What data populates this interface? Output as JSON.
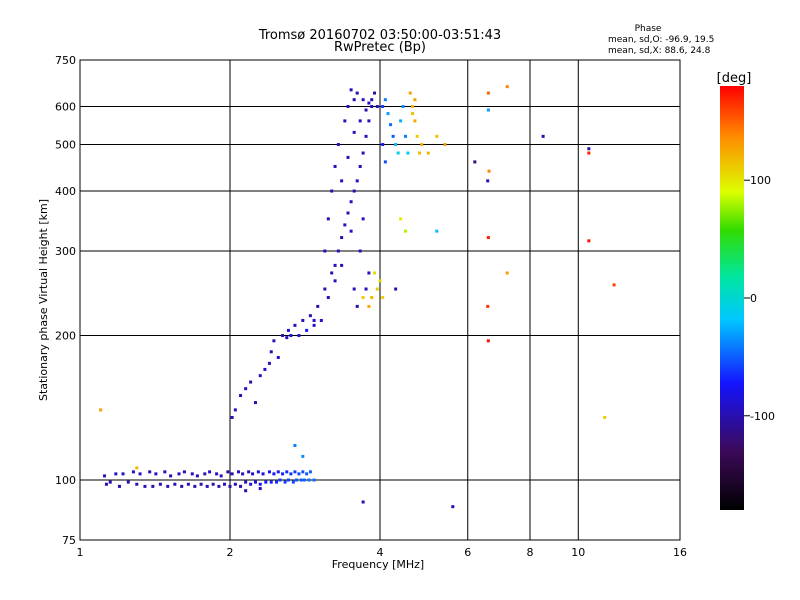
{
  "chart_data": {
    "type": "scatter",
    "title": "Tromsø 20160702 03:50:00-03:51:43",
    "subtitle": "RwPretec (Bp)",
    "xlabel": "Frequency [MHz]",
    "ylabel": "Stationary phase Virtual Height [km]",
    "x_scale": "log",
    "y_scale": "log",
    "xlim": [
      1,
      16
    ],
    "ylim": [
      75,
      750
    ],
    "x_ticks": [
      1,
      2,
      4,
      6,
      8,
      10,
      16
    ],
    "y_ticks": [
      75,
      100,
      200,
      300,
      400,
      500,
      600,
      750
    ],
    "grid": true,
    "stats": {
      "title": "Phase",
      "line_o": "mean, sd,O: -96.9, 19.5",
      "line_x": "mean, sd,X:  88.6, 24.8"
    },
    "colorbar": {
      "label": "[deg]",
      "range": [
        -180,
        180
      ],
      "ticks": [
        100,
        0,
        -100
      ]
    },
    "points": [
      [
        1.12,
        102,
        -95
      ],
      [
        1.13,
        98,
        -98
      ],
      [
        1.15,
        99,
        -100
      ],
      [
        1.18,
        103,
        -95
      ],
      [
        1.2,
        97,
        -100
      ],
      [
        1.22,
        103,
        -92
      ],
      [
        1.25,
        99,
        -96
      ],
      [
        1.28,
        104,
        -95
      ],
      [
        1.3,
        98,
        -98
      ],
      [
        1.32,
        103,
        -96
      ],
      [
        1.35,
        97,
        -97
      ],
      [
        1.38,
        104,
        -95
      ],
      [
        1.4,
        97,
        -100
      ],
      [
        1.42,
        103,
        -92
      ],
      [
        1.45,
        98,
        -98
      ],
      [
        1.48,
        104,
        -94
      ],
      [
        1.5,
        97,
        -97
      ],
      [
        1.52,
        102,
        -96
      ],
      [
        1.55,
        98,
        -99
      ],
      [
        1.58,
        103,
        -95
      ],
      [
        1.6,
        97,
        -100
      ],
      [
        1.62,
        104,
        -93
      ],
      [
        1.65,
        98,
        -97
      ],
      [
        1.68,
        103,
        -94
      ],
      [
        1.7,
        97,
        -99
      ],
      [
        1.72,
        102,
        -96
      ],
      [
        1.75,
        98,
        -98
      ],
      [
        1.78,
        103,
        -95
      ],
      [
        1.8,
        97,
        -100
      ],
      [
        1.82,
        104,
        -92
      ],
      [
        1.85,
        98,
        -97
      ],
      [
        1.88,
        103,
        -96
      ],
      [
        1.9,
        97,
        -99
      ],
      [
        1.92,
        102,
        -95
      ],
      [
        1.95,
        98,
        -98
      ],
      [
        1.98,
        104,
        -94
      ],
      [
        2.0,
        97,
        -100
      ],
      [
        2.02,
        103,
        -96
      ],
      [
        2.05,
        98,
        -97
      ],
      [
        2.08,
        104,
        -95
      ],
      [
        2.1,
        97,
        -99
      ],
      [
        2.12,
        103,
        -96
      ],
      [
        2.15,
        99,
        -90
      ],
      [
        2.18,
        104,
        -94
      ],
      [
        2.2,
        98,
        -85
      ],
      [
        2.22,
        103,
        -96
      ],
      [
        2.25,
        99,
        -80
      ],
      [
        2.28,
        104,
        -88
      ],
      [
        2.3,
        98,
        -75
      ],
      [
        2.33,
        103,
        -82
      ],
      [
        2.36,
        99,
        -70
      ],
      [
        2.4,
        104,
        -75
      ],
      [
        2.42,
        99,
        -68
      ],
      [
        2.45,
        103,
        -72
      ],
      [
        2.48,
        99,
        -65
      ],
      [
        2.5,
        104,
        -70
      ],
      [
        2.52,
        100,
        -62
      ],
      [
        2.55,
        103,
        -68
      ],
      [
        2.58,
        99,
        -60
      ],
      [
        2.6,
        104,
        -65
      ],
      [
        2.62,
        100,
        -58
      ],
      [
        2.65,
        103,
        -62
      ],
      [
        2.68,
        99,
        -55
      ],
      [
        2.7,
        104,
        -60
      ],
      [
        2.72,
        100,
        -52
      ],
      [
        2.75,
        103,
        -58
      ],
      [
        2.78,
        100,
        -50
      ],
      [
        2.8,
        104,
        -55
      ],
      [
        2.82,
        100,
        -48
      ],
      [
        2.85,
        103,
        -52
      ],
      [
        2.88,
        100,
        -45
      ],
      [
        2.9,
        104,
        -50
      ],
      [
        2.95,
        100,
        -45
      ],
      [
        1.3,
        106,
        120
      ],
      [
        2.3,
        96,
        -96
      ],
      [
        2.15,
        95,
        -100
      ],
      [
        2.7,
        118,
        -40
      ],
      [
        2.8,
        112,
        -35
      ],
      [
        2.02,
        135,
        -98
      ],
      [
        2.05,
        140,
        -95
      ],
      [
        2.1,
        150,
        -100
      ],
      [
        2.15,
        155,
        -90
      ],
      [
        2.2,
        160,
        -96
      ],
      [
        2.25,
        145,
        -100
      ],
      [
        2.3,
        165,
        -95
      ],
      [
        2.35,
        170,
        -92
      ],
      [
        2.4,
        175,
        -98
      ],
      [
        2.42,
        185,
        -100
      ],
      [
        2.45,
        195,
        -96
      ],
      [
        2.5,
        180,
        -94
      ],
      [
        2.55,
        200,
        -98
      ],
      [
        2.6,
        198,
        -95
      ],
      [
        2.62,
        205,
        -90
      ],
      [
        2.65,
        200,
        -80
      ],
      [
        2.7,
        210,
        -96
      ],
      [
        2.75,
        200,
        -85
      ],
      [
        2.8,
        215,
        -98
      ],
      [
        2.85,
        205,
        -70
      ],
      [
        2.9,
        220,
        -95
      ],
      [
        2.95,
        210,
        -92
      ],
      [
        3.0,
        230,
        -98
      ],
      [
        3.05,
        215,
        -90
      ],
      [
        3.1,
        250,
        -96
      ],
      [
        3.15,
        240,
        -100
      ],
      [
        3.2,
        270,
        -95
      ],
      [
        3.25,
        280,
        -98
      ],
      [
        3.3,
        300,
        -96
      ],
      [
        3.35,
        320,
        -100
      ],
      [
        3.4,
        340,
        -95
      ],
      [
        3.45,
        360,
        -97
      ],
      [
        3.5,
        380,
        -92
      ],
      [
        3.55,
        400,
        -98
      ],
      [
        3.6,
        420,
        -95
      ],
      [
        3.65,
        450,
        -100
      ],
      [
        3.7,
        480,
        -96
      ],
      [
        3.75,
        520,
        -94
      ],
      [
        3.8,
        560,
        -98
      ],
      [
        3.85,
        600,
        -96
      ],
      [
        3.9,
        640,
        -100
      ],
      [
        3.5,
        650,
        -95
      ],
      [
        3.6,
        640,
        -98
      ],
      [
        3.7,
        620,
        -96
      ],
      [
        3.8,
        610,
        -92
      ],
      [
        3.55,
        620,
        -100
      ],
      [
        3.45,
        600,
        -95
      ],
      [
        3.4,
        560,
        -98
      ],
      [
        3.3,
        500,
        -96
      ],
      [
        3.25,
        450,
        -94
      ],
      [
        3.2,
        400,
        -98
      ],
      [
        3.15,
        350,
        -96
      ],
      [
        3.1,
        300,
        -100
      ],
      [
        3.35,
        420,
        -95
      ],
      [
        3.45,
        470,
        -98
      ],
      [
        3.55,
        530,
        -96
      ],
      [
        3.65,
        560,
        -92
      ],
      [
        3.75,
        590,
        -98
      ],
      [
        3.85,
        620,
        -95
      ],
      [
        3.95,
        600,
        -100
      ],
      [
        3.75,
        250,
        -98
      ],
      [
        3.8,
        270,
        -96
      ],
      [
        3.6,
        230,
        -100
      ],
      [
        3.55,
        250,
        -95
      ],
      [
        3.65,
        300,
        -98
      ],
      [
        3.7,
        350,
        -96
      ],
      [
        3.5,
        330,
        -92
      ],
      [
        3.35,
        280,
        -98
      ],
      [
        3.25,
        260,
        -95
      ],
      [
        2.95,
        215,
        -85
      ],
      [
        4.05,
        600,
        -60
      ],
      [
        4.1,
        620,
        -40
      ],
      [
        4.15,
        580,
        -30
      ],
      [
        4.2,
        550,
        -45
      ],
      [
        4.25,
        520,
        -50
      ],
      [
        4.3,
        500,
        -20
      ],
      [
        4.35,
        480,
        -10
      ],
      [
        4.4,
        560,
        -25
      ],
      [
        4.45,
        600,
        -35
      ],
      [
        4.5,
        520,
        -40
      ],
      [
        4.55,
        480,
        -15
      ],
      [
        4.05,
        500,
        -70
      ],
      [
        4.1,
        460,
        -55
      ],
      [
        4.6,
        640,
        130
      ],
      [
        4.65,
        600,
        120
      ],
      [
        4.7,
        560,
        125
      ],
      [
        4.75,
        520,
        110
      ],
      [
        4.8,
        480,
        118
      ],
      [
        4.85,
        500,
        122
      ],
      [
        4.7,
        620,
        128
      ],
      [
        4.65,
        580,
        115
      ],
      [
        3.9,
        270,
        105
      ],
      [
        3.95,
        250,
        112
      ],
      [
        4.0,
        260,
        108
      ],
      [
        3.85,
        240,
        118
      ],
      [
        3.8,
        230,
        125
      ],
      [
        3.7,
        240,
        110
      ],
      [
        4.4,
        350,
        100
      ],
      [
        4.5,
        330,
        80
      ],
      [
        5.2,
        330,
        -20
      ],
      [
        5.0,
        480,
        120
      ],
      [
        5.4,
        500,
        130
      ],
      [
        5.2,
        520,
        115
      ],
      [
        4.3,
        250,
        -100
      ],
      [
        3.7,
        90,
        -100
      ],
      [
        5.6,
        88,
        -100
      ],
      [
        4.05,
        240,
        110
      ],
      [
        6.6,
        640,
        150
      ],
      [
        6.6,
        590,
        -30
      ],
      [
        6.62,
        440,
        140
      ],
      [
        6.58,
        420,
        -100
      ],
      [
        6.6,
        320,
        170
      ],
      [
        6.58,
        230,
        165
      ],
      [
        6.6,
        195,
        175
      ],
      [
        7.2,
        660,
        140
      ],
      [
        7.2,
        270,
        130
      ],
      [
        6.2,
        460,
        -120
      ],
      [
        8.5,
        520,
        -100
      ],
      [
        10.5,
        480,
        170
      ],
      [
        10.5,
        490,
        -100
      ],
      [
        10.5,
        315,
        175
      ],
      [
        11.3,
        135,
        110
      ],
      [
        11.8,
        255,
        160
      ],
      [
        1.1,
        140,
        130
      ]
    ]
  }
}
